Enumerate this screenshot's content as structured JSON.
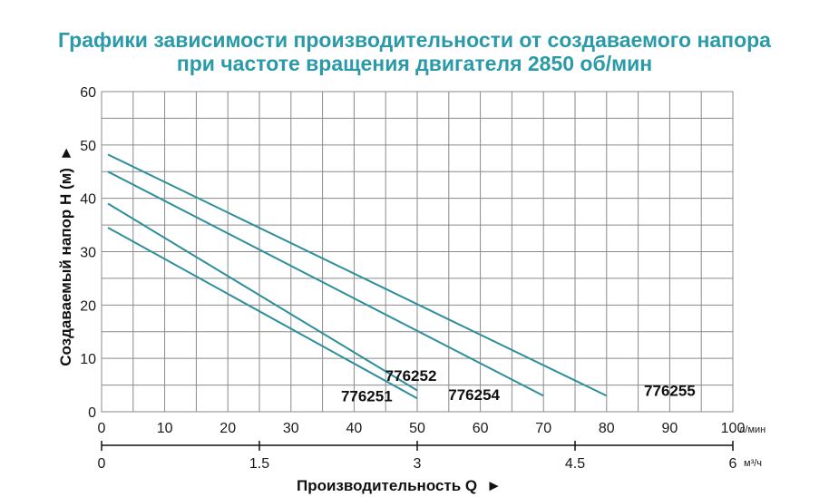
{
  "chart_data": {
    "type": "line",
    "title": "Графики зависимости производительности от создаваемого напора",
    "subtitle": "при частоте вращения двигателя 2850 об/мин",
    "xlabel": "Производительность Q",
    "ylabel": "Создаваемый напор H (м)",
    "x_unit": "л/мин",
    "x2_unit": "м³/ч",
    "xlim": [
      0,
      100
    ],
    "ylim": [
      0,
      60
    ],
    "x_ticks": [
      "0",
      "10",
      "20",
      "30",
      "40",
      "50",
      "60",
      "70",
      "80",
      "90",
      "100"
    ],
    "y_ticks": [
      "0",
      "10",
      "20",
      "30",
      "40",
      "50",
      "60"
    ],
    "x2_ticks": [
      "0",
      "1.5",
      "3",
      "4.5",
      "6"
    ],
    "x2_tick_values_lpm": [
      0,
      25,
      50,
      75,
      100
    ],
    "grid": true,
    "series": [
      {
        "name": "776251",
        "x": [
          1,
          50
        ],
        "y": [
          34.5,
          2.5
        ],
        "label_at": [
          42,
          3.0
        ]
      },
      {
        "name": "776252",
        "x": [
          1,
          50
        ],
        "y": [
          39,
          4.0
        ],
        "label_at": [
          49,
          6.8
        ]
      },
      {
        "name": "776254",
        "x": [
          1,
          70
        ],
        "y": [
          45,
          3.0
        ],
        "label_at": [
          59,
          3.2
        ]
      },
      {
        "name": "776255",
        "x": [
          1,
          80
        ],
        "y": [
          48.2,
          3.0
        ],
        "label_at": [
          90,
          4.0
        ]
      }
    ],
    "colors": {
      "series": "#2e8f9b",
      "title": "#2a9aa8",
      "grid": "#8a8a8a"
    }
  }
}
